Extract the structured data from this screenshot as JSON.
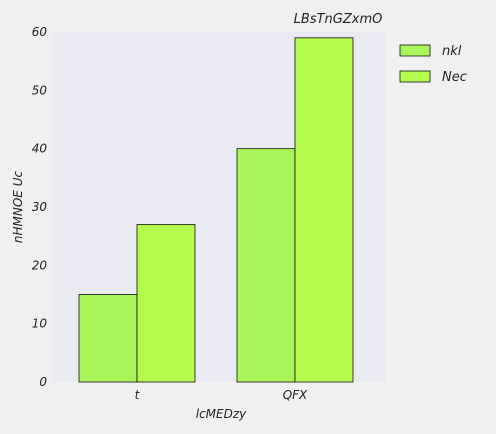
{
  "chart_data": {
    "type": "bar",
    "title": "LBsTnGZxmO",
    "xlabel": "lcMEDzy",
    "ylabel": "nHMNOE Uc",
    "categories": [
      "t",
      "QFX"
    ],
    "series": [
      {
        "name": "nkl",
        "values": [
          15,
          40
        ],
        "color": "#a8f65a"
      },
      {
        "name": "Nec",
        "values": [
          27,
          59
        ],
        "color": "#b3fc4e"
      }
    ],
    "ylim": [
      0,
      60
    ],
    "yticks": [
      0,
      10,
      20,
      30,
      40,
      50,
      60
    ],
    "grid": false,
    "legend_position": "top-right",
    "plot_background": "#eaeaf2",
    "page_background": "#f0f0f0"
  }
}
